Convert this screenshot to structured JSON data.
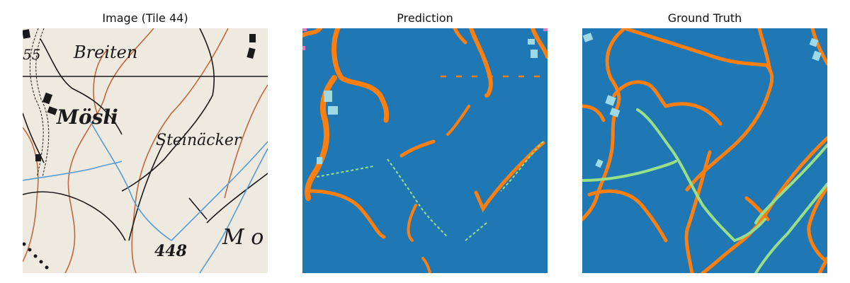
{
  "panels": {
    "image": {
      "title": "Image (Tile 44)",
      "labels": {
        "breiten": "Breiten",
        "mosli": "Mösli",
        "steinacker": "Steinäcker",
        "elevation": "448",
        "partial_m": "M o",
        "partial_55": "55"
      }
    },
    "prediction": {
      "title": "Prediction"
    },
    "ground_truth": {
      "title": "Ground Truth"
    }
  },
  "colors": {
    "map_paper": "#eeeae0",
    "map_black": "#1a1a1a",
    "map_contour": "#c0683f",
    "map_water": "#5a9bd4",
    "class_background": "#1f77b4",
    "class_road": "#ff7f0e",
    "class_stream": "#98df8a",
    "class_building": "#9edae5",
    "class_other": "#e377c2"
  }
}
